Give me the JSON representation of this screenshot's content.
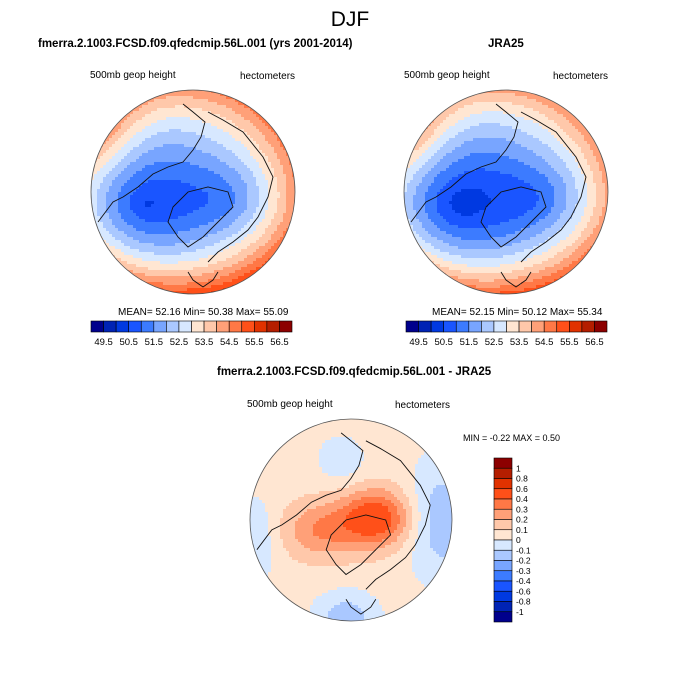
{
  "figure": {
    "title": "DJF"
  },
  "chart_data": [
    {
      "type": "heatmap",
      "projection": "north-polar-stereographic",
      "title": "fmerra.2.1003.FCSD.f09.qfedcmip.56L.001 (yrs 2001-2014)",
      "left_label": "500mb geop height",
      "right_label": "hectometers",
      "stats_text": "MEAN=  52.16  Min=  50.38  Max=  55.09",
      "stats": {
        "mean": 52.16,
        "min": 50.38,
        "max": 55.09
      },
      "field_description": "Low centered over Canadian Arctic/Baffin (~50.5), increasing equatorward to ~55 at southern rim (Atlantic/Pacific)",
      "colorbar": {
        "orientation": "horizontal",
        "levels": [
          49.5,
          50.0,
          50.5,
          51.0,
          51.5,
          52.0,
          52.5,
          53.0,
          53.5,
          54.0,
          54.5,
          55.0,
          55.5,
          56.0,
          56.5
        ],
        "tick_labels": [
          "49.5",
          "50.5",
          "51.5",
          "52.5",
          "53.5",
          "54.5",
          "55.5",
          "56.5"
        ],
        "colors": [
          "#00008c",
          "#0023b4",
          "#0039e1",
          "#1a55ff",
          "#3c7bff",
          "#78a5ff",
          "#aac8ff",
          "#d7e8ff",
          "#ffe6d2",
          "#ffc8aa",
          "#ffa078",
          "#ff7846",
          "#ff5019",
          "#e13200",
          "#b41e00",
          "#8c0000"
        ]
      }
    },
    {
      "type": "heatmap",
      "projection": "north-polar-stereographic",
      "title": "JRA25",
      "left_label": "500mb geop height",
      "right_label": "hectometers",
      "stats_text": "MEAN=  52.15  Min=  50.12  Max=  55.34",
      "stats": {
        "mean": 52.15,
        "min": 50.12,
        "max": 55.34
      },
      "field_description": "Low centered over Canadian Arctic/Baffin (~50.1), increasing equatorward to ~55.3 at southern rim",
      "colorbar": {
        "orientation": "horizontal",
        "levels": [
          49.5,
          50.0,
          50.5,
          51.0,
          51.5,
          52.0,
          52.5,
          53.0,
          53.5,
          54.0,
          54.5,
          55.0,
          55.5,
          56.0,
          56.5
        ],
        "tick_labels": [
          "49.5",
          "50.5",
          "51.5",
          "52.5",
          "53.5",
          "54.5",
          "55.5",
          "56.5"
        ],
        "colors": [
          "#00008c",
          "#0023b4",
          "#0039e1",
          "#1a55ff",
          "#3c7bff",
          "#78a5ff",
          "#aac8ff",
          "#d7e8ff",
          "#ffe6d2",
          "#ffc8aa",
          "#ffa078",
          "#ff7846",
          "#ff5019",
          "#e13200",
          "#b41e00",
          "#8c0000"
        ]
      }
    },
    {
      "type": "heatmap",
      "projection": "north-polar-stereographic",
      "title": "fmerra.2.1003.FCSD.f09.qfedcmip.56L.001 - JRA25",
      "left_label": "500mb geop height",
      "right_label": "hectometers",
      "stats_text": "MIN =  -0.22 MAX =   0.50",
      "stats": {
        "min": -0.22,
        "max": 0.5
      },
      "field_description": "Positive difference (~0.3-0.5) over Siberia/Arctic and Greenland, negative (~-0.1 to -0.2) over North Pacific and Europe/Atlantic rim",
      "colorbar": {
        "orientation": "vertical",
        "levels": [
          -1,
          -0.8,
          -0.6,
          -0.4,
          -0.3,
          -0.2,
          -0.1,
          0,
          0.1,
          0.2,
          0.3,
          0.4,
          0.6,
          0.8,
          1
        ],
        "tick_labels": [
          "1",
          "0.8",
          "0.6",
          "0.4",
          "0.3",
          "0.2",
          "0.1",
          "0",
          "-0.1",
          "-0.2",
          "-0.3",
          "-0.4",
          "-0.6",
          "-0.8",
          "-1"
        ],
        "colors": [
          "#00008c",
          "#0023b4",
          "#0039e1",
          "#1a55ff",
          "#3c7bff",
          "#78a5ff",
          "#aac8ff",
          "#d7e8ff",
          "#ffe6d2",
          "#ffc8aa",
          "#ffa078",
          "#ff7846",
          "#ff5019",
          "#e13200",
          "#b41e00",
          "#8c0000"
        ]
      }
    }
  ]
}
